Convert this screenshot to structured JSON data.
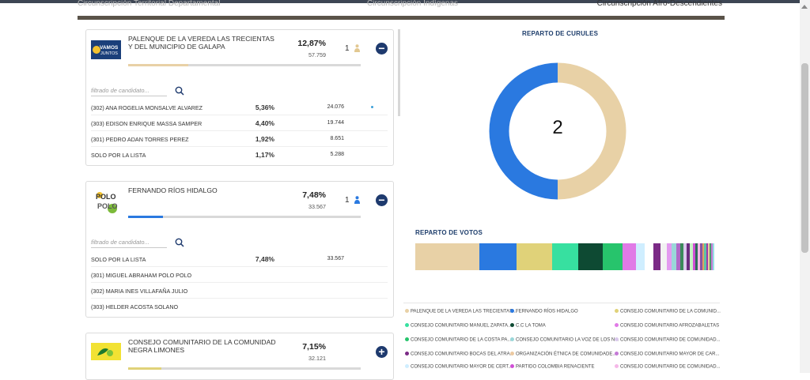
{
  "tabs": [
    "Circunscripción Territorial Departamental",
    "Circunscripción Indígenas",
    "Circunscripción Afro-Descendientes"
  ],
  "filter_placeholder": "filtrado de candidato...",
  "lists": [
    {
      "name": "PALENQUE DE LA VEREDA LAS TRECIENTAS Y DEL MUNICIPIO DE GALAPA",
      "logo_text": "VAMOS JUNTOS",
      "percent": "12,87%",
      "votes": "57.759",
      "seats": "1",
      "progress": 0.1287,
      "color": "#e8d1a6",
      "toggle": "−",
      "candidates": [
        {
          "name": "(302) ANA ROGELIA MONSALVE ALVAREZ",
          "percent": "5,36%",
          "votes": "24.076"
        },
        {
          "name": "(303) EDISON ENRIQUE MASSA SAMPER",
          "percent": "4,40%",
          "votes": "19.744"
        },
        {
          "name": "(301) PEDRO ADAN TORRES PEREZ",
          "percent": "1,92%",
          "votes": "8.651"
        },
        {
          "name": "SOLO POR LA LISTA",
          "percent": "1,17%",
          "votes": "5.288"
        }
      ]
    },
    {
      "name": "FERNANDO RÍOS HIDALGO",
      "logo_text": "POLO POLO",
      "percent": "7,48%",
      "votes": "33.567",
      "seats": "1",
      "progress": 0.0748,
      "color": "#2a79e0",
      "toggle": "−",
      "candidates": [
        {
          "name": "SOLO POR LA LISTA",
          "percent": "7,48%",
          "votes": "33.567"
        },
        {
          "name": "(301) MIGUEL ABRAHAM POLO POLO",
          "percent": "",
          "votes": ""
        },
        {
          "name": "(302) MARIA INES VILLAFAÑA JULIO",
          "percent": "",
          "votes": ""
        },
        {
          "name": "(303) HELDER ACOSTA SOLANO",
          "percent": "",
          "votes": ""
        }
      ]
    },
    {
      "name": "CONSEJO COMUNITARIO DE LA COMUNIDAD NEGRA LIMONES",
      "percent": "7,15%",
      "votes": "32.121",
      "progress": 0.0715,
      "color": "#e0d279",
      "toggle": "+"
    }
  ],
  "curules": {
    "title": "REPARTO DE CURULES",
    "total": "2",
    "segments": [
      {
        "party": "PALENQUE DE LA VEREDA LAS TRECIENTAS Y DEL MUNICIPIO DE GALAPA",
        "seats": 1,
        "color": "#e8d1a6"
      },
      {
        "party": "FERNANDO RÍOS HIDALGO",
        "seats": 1,
        "color": "#2a79e0"
      }
    ]
  },
  "votos": {
    "title": "REPARTO DE VOTOS",
    "segments": [
      {
        "share": 12.87,
        "color": "#e8d1a6"
      },
      {
        "share": 7.48,
        "color": "#2a79e0"
      },
      {
        "share": 7.15,
        "color": "#e0d279"
      },
      {
        "share": 5.2,
        "color": "#37e0a0"
      },
      {
        "share": 5.0,
        "color": "#0e4a33"
      },
      {
        "share": 3.9,
        "color": "#27c46c"
      },
      {
        "share": 2.7,
        "color": "#e07ae6"
      },
      {
        "share": 1.8,
        "color": "#cfeeff"
      },
      {
        "share": 1.7,
        "color": "#ffffff"
      },
      {
        "share": 1.5,
        "color": "#7b2a86"
      },
      {
        "share": 1.2,
        "color": "#f2f2f2"
      },
      {
        "share": 1.0,
        "color": "#e39af0"
      },
      {
        "share": 0.9,
        "color": "#9ad7d9"
      },
      {
        "share": 0.8,
        "color": "#b068c8"
      },
      {
        "share": 0.7,
        "color": "#3a8a5a"
      },
      {
        "share": 0.7,
        "color": "#d9c8ec"
      },
      {
        "share": 0.6,
        "color": "#6a2a7e"
      },
      {
        "share": 0.6,
        "color": "#c6f2c4"
      },
      {
        "share": 0.5,
        "color": "#d04fd6"
      },
      {
        "share": 0.5,
        "color": "#2f6d5a"
      },
      {
        "share": 0.5,
        "color": "#f5b8e8"
      },
      {
        "share": 0.4,
        "color": "#8a52a3"
      },
      {
        "share": 0.4,
        "color": "#e0a060"
      },
      {
        "share": 0.4,
        "color": "#5cc2a8"
      },
      {
        "share": 0.4,
        "color": "#a03aa8"
      },
      {
        "share": 0.3,
        "color": "#ecc9a0"
      },
      {
        "share": 0.3,
        "color": "#4a9a6a"
      },
      {
        "share": 0.3,
        "color": "#c47ad6"
      },
      {
        "share": 0.3,
        "color": "#9ae0e6"
      }
    ]
  },
  "legend": [
    {
      "label": "PALENQUE DE LA VEREDA LAS TRECIENTAS...",
      "color": "#e8d1a6"
    },
    {
      "label": "FERNANDO RÍOS HIDALGO",
      "color": "#2a79e0"
    },
    {
      "label": "CONSEJO COMUNITARIO DE LA COMUNID...",
      "color": "#e0d279"
    },
    {
      "label": "CONSEJO COMUNITARIO MANUEL ZAPATA...",
      "color": "#37e0a0"
    },
    {
      "label": "C.C LA TOMA",
      "color": "#0e4a33"
    },
    {
      "label": "CONSEJO COMUNITARIO AFROZABALETAS",
      "color": "#e07ae6"
    },
    {
      "label": "CONSEJO COMUNITARIO DE LA COSTA PA...",
      "color": "#27c46c"
    },
    {
      "label": "CONSEJO COMUNITARIO LA VOZ DE LOS N...",
      "color": "#9ad7d9"
    },
    {
      "label": "CONSEJO COMUNITARIO DE COMUNIDAD...",
      "color": "#d9c8ec"
    },
    {
      "label": "CONSEJO COMUNITARIO BOCAS DEL ATRA...",
      "color": "#7b2a86"
    },
    {
      "label": "ORGANIZACIÓN ÉTNICA DE COMUNIDADE...",
      "color": "#ecc9a0"
    },
    {
      "label": "CONSEJO COMUNITARIO MAYOR DE CAR...",
      "color": "#c47ad6"
    },
    {
      "label": "CONSEJO COMUNITARIO MAYOR DE CERT...",
      "color": "#cfeeff"
    },
    {
      "label": "PARTIDO COLOMBIA RENACIENTE",
      "color": "#d04fd6"
    },
    {
      "label": "CONSEJO COMUNITARIO DE COMUNIDAD...",
      "color": "#f5b8e8"
    }
  ]
}
